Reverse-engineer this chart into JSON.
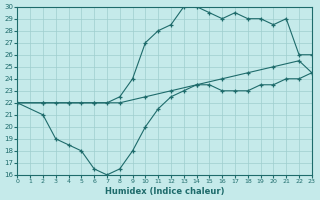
{
  "xlabel": "Humidex (Indice chaleur)",
  "xlim": [
    0,
    23
  ],
  "ylim": [
    16,
    30
  ],
  "xticks": [
    0,
    1,
    2,
    3,
    4,
    5,
    6,
    7,
    8,
    9,
    10,
    11,
    12,
    13,
    14,
    15,
    16,
    17,
    18,
    19,
    20,
    21,
    22,
    23
  ],
  "yticks": [
    16,
    17,
    18,
    19,
    20,
    21,
    22,
    23,
    24,
    25,
    26,
    27,
    28,
    29,
    30
  ],
  "bg_color": "#c5eaea",
  "grid_color": "#9fcece",
  "line_color": "#1e6b6b",
  "line1_x": [
    0,
    2,
    3,
    4,
    5,
    6,
    7,
    8,
    9,
    10,
    11,
    12,
    13,
    14,
    15,
    16,
    17,
    18,
    19,
    20,
    21,
    22,
    23
  ],
  "line1_y": [
    22,
    21,
    19,
    18.5,
    18,
    16.5,
    16,
    16.5,
    18,
    20,
    21.5,
    22.5,
    23,
    23.5,
    23.5,
    23,
    23,
    23,
    23.5,
    23.5,
    24,
    24,
    24.5
  ],
  "line2_x": [
    0,
    2,
    4,
    6,
    8,
    10,
    12,
    14,
    16,
    18,
    20,
    22,
    23
  ],
  "line2_y": [
    22,
    22,
    22,
    22,
    22,
    22.5,
    23,
    23.5,
    24,
    24.5,
    25,
    25.5,
    24.5
  ],
  "line3_x": [
    0,
    2,
    3,
    4,
    5,
    6,
    7,
    8,
    9,
    10,
    11,
    12,
    13,
    14,
    15,
    16,
    17,
    18,
    19,
    20,
    21,
    22,
    23
  ],
  "line3_y": [
    22,
    22,
    22,
    22,
    22,
    22,
    22,
    22.5,
    24,
    27,
    28,
    28.5,
    30,
    30,
    29.5,
    29,
    29.5,
    29,
    29,
    28.5,
    29,
    26,
    26
  ]
}
